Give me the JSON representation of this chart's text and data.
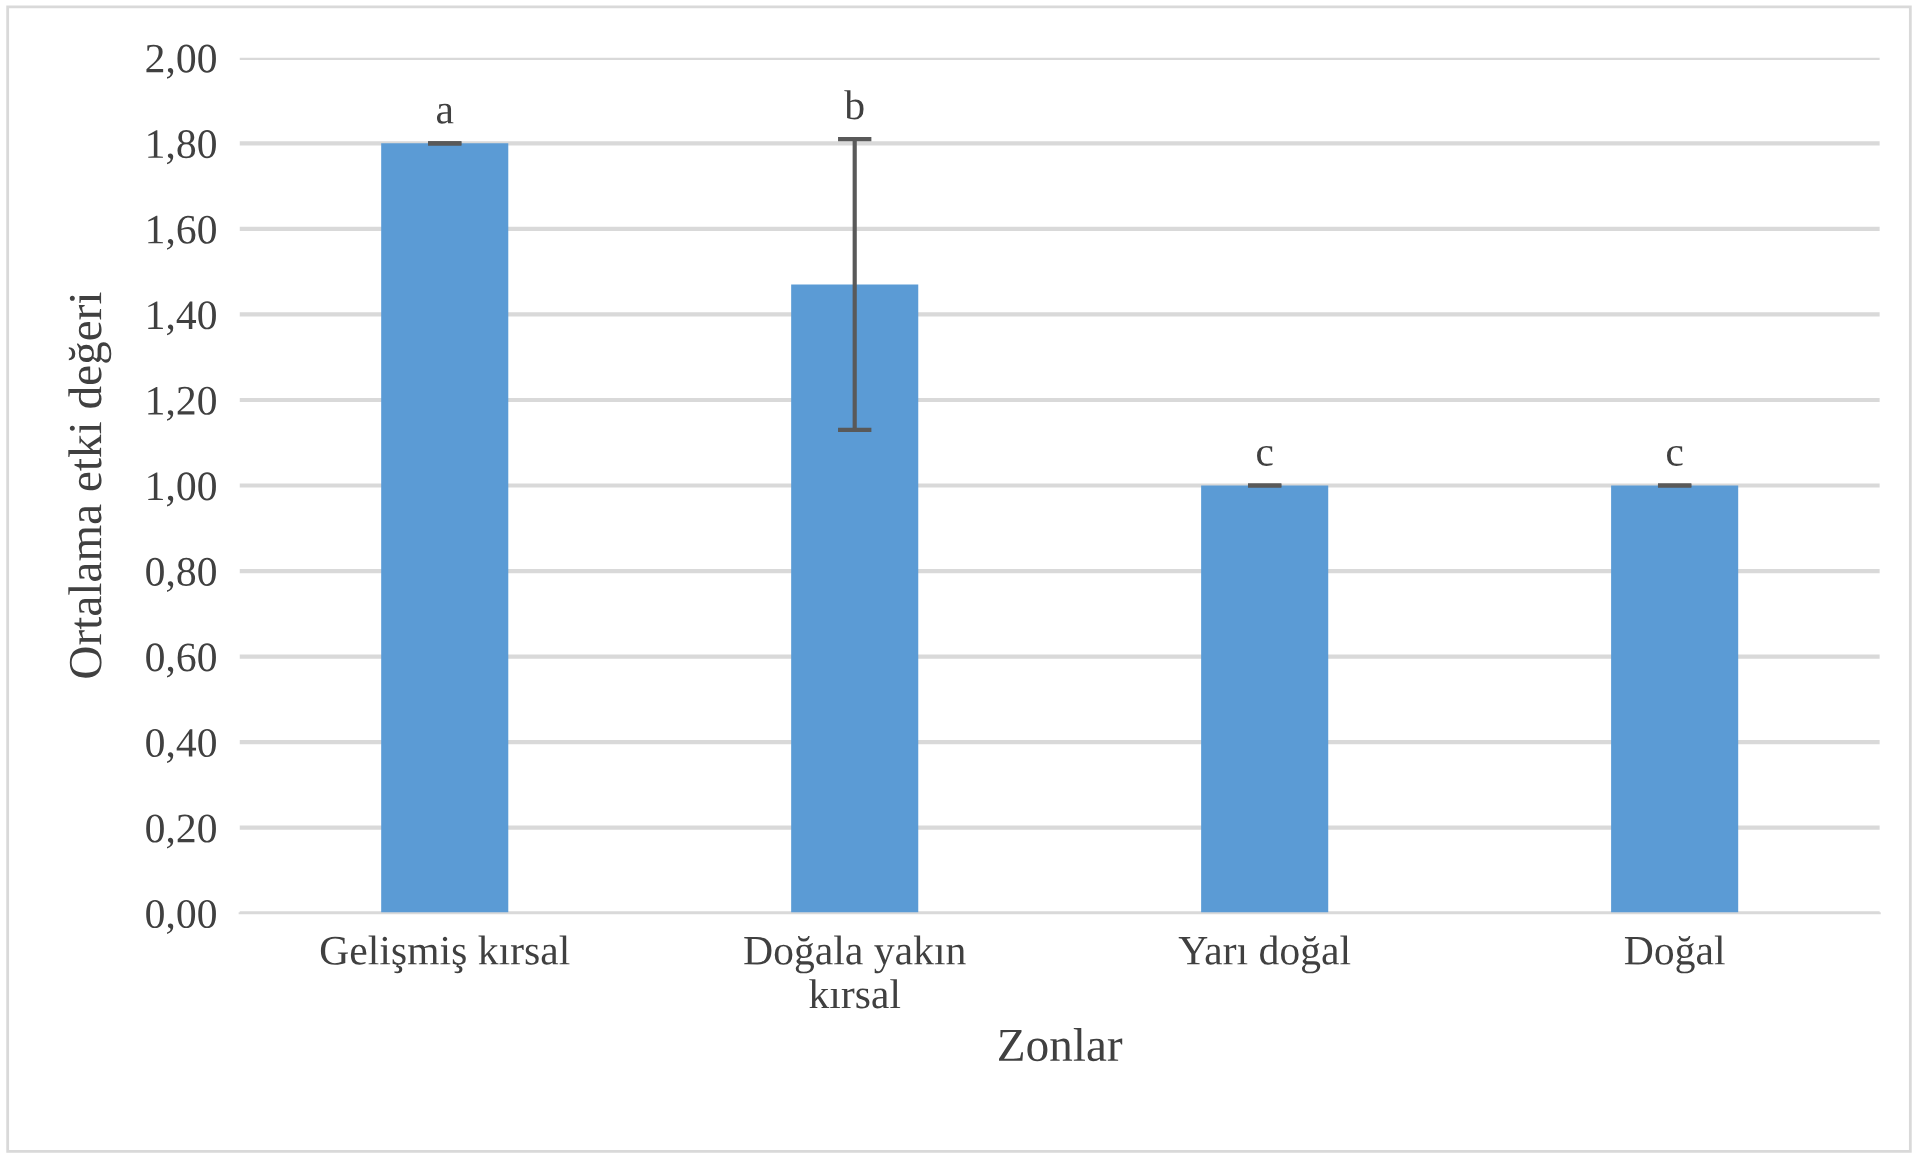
{
  "chart_data": {
    "type": "bar",
    "xlabel": "Zonlar",
    "ylabel": "Ortalama etki değeri",
    "categories": [
      "Gelişmiş kırsal",
      "Doğala yakın\nkırsal",
      "Yarı doğal",
      "Doğal"
    ],
    "values": [
      1.8,
      1.47,
      1.0,
      1.0
    ],
    "errors": [
      0,
      0.34,
      0,
      0
    ],
    "color": "#5b9bd5",
    "ylim": [
      0,
      2
    ],
    "yticks": [
      {
        "value": 0,
        "label": "0,00"
      },
      {
        "value": 0.2,
        "label": "0,20"
      },
      {
        "value": 0.4,
        "label": "0,40"
      },
      {
        "value": 0.6,
        "label": "0,60"
      },
      {
        "value": 0.8,
        "label": "0,80"
      },
      {
        "value": 1.0,
        "label": "1,00"
      },
      {
        "value": 1.2,
        "label": "1,20"
      },
      {
        "value": 1.4,
        "label": "1,40"
      },
      {
        "value": 1.6,
        "label": "1,60"
      },
      {
        "value": 1.8,
        "label": "1,80"
      },
      {
        "value": 2.0,
        "label": "2,00"
      }
    ],
    "grid": "y",
    "annotations": [
      {
        "text": "a",
        "x": "Gelişmiş kırsal",
        "y": 1.8
      },
      {
        "text": "b",
        "x": "Doğala yakın\nkırsal",
        "y": 1.81
      },
      {
        "text": "c",
        "x": "Yarı doğal",
        "y": 1.0
      },
      {
        "text": "c",
        "x": "Doğal",
        "y": 1.0
      }
    ]
  }
}
